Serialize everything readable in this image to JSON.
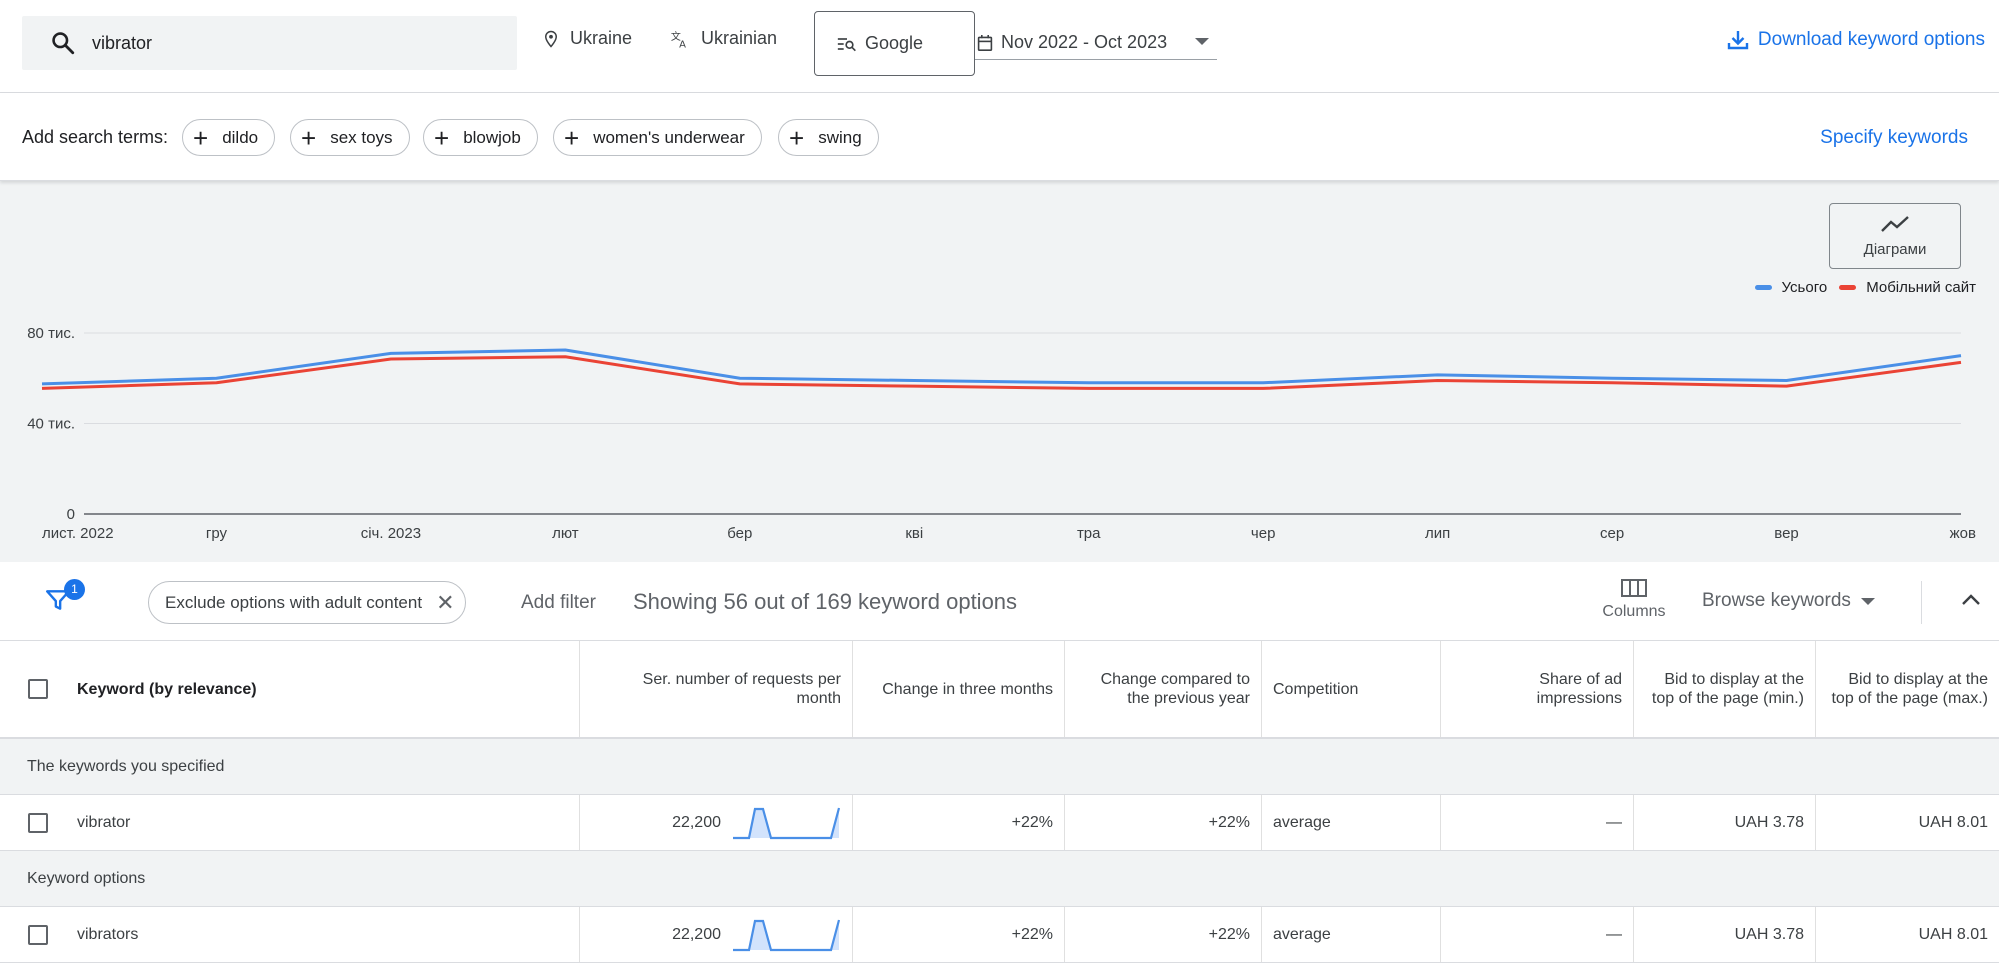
{
  "topbar": {
    "search_value": "vibrator",
    "location": "Ukraine",
    "language": "Ukrainian",
    "network": "Google",
    "date_range": "Nov 2022 - Oct 2023",
    "download_label": "Download keyword options"
  },
  "terms": {
    "label": "Add search terms:",
    "chips": [
      "dildo",
      "sex toys",
      "blowjob",
      "women's underwear",
      "swing"
    ],
    "specify_label": "Specify keywords"
  },
  "chart_button_label": "Діаграми",
  "legend": {
    "total": "Усього",
    "mobile": "Мобільний сайт"
  },
  "colors": {
    "total": "#4a8fe7",
    "mobile": "#ea4335",
    "accent": "#1a73e8"
  },
  "chart_data": {
    "type": "line",
    "x": [
      "лист. 2022",
      "гру",
      "січ. 2023",
      "лют",
      "бер",
      "кві",
      "тра",
      "чер",
      "лип",
      "сер",
      "вер",
      "жов"
    ],
    "y_ticks": [
      {
        "value": 0,
        "label": "0"
      },
      {
        "value": 40000,
        "label": "40 тис."
      },
      {
        "value": 80000,
        "label": "80 тис."
      }
    ],
    "ylim": [
      0,
      80000
    ],
    "series": [
      {
        "name": "Усього",
        "values": [
          57500,
          60000,
          71000,
          72500,
          60000,
          59000,
          58000,
          58000,
          61500,
          60000,
          59000,
          70000
        ]
      },
      {
        "name": "Мобільний сайт",
        "values": [
          55500,
          58000,
          68500,
          69500,
          57500,
          56500,
          55500,
          55500,
          59000,
          58000,
          56500,
          67000
        ]
      }
    ]
  },
  "filterbar": {
    "badge_count": "1",
    "exclude_chip": "Exclude options with adult content",
    "add_filter": "Add filter",
    "showing": "Showing 56 out of 169 keyword options",
    "columns_label": "Columns",
    "browse_label": "Browse keywords"
  },
  "table": {
    "headers": {
      "keyword": "Keyword (by relevance)",
      "avg_requests": "Ser. number of requests per month",
      "change_3m": "Change in three months",
      "change_yoy": "Change compared to the previous year",
      "competition": "Competition",
      "impr_share": "Share of ad impressions",
      "bid_min": "Bid to display at the top of the page (min.)",
      "bid_max": "Bid to display at the top of the page (max.)"
    },
    "groups": [
      {
        "title": "The keywords you specified",
        "rows": [
          {
            "keyword": "vibrator",
            "avg_requests": "22,200",
            "change_3m": "+22%",
            "change_yoy": "+22%",
            "competition": "average",
            "impr_share": "—",
            "bid_min": "UAH 3.78",
            "bid_max": "UAH 8.01"
          }
        ]
      },
      {
        "title": "Keyword options",
        "rows": [
          {
            "keyword": "vibrators",
            "avg_requests": "22,200",
            "change_3m": "+22%",
            "change_yoy": "+22%",
            "competition": "average",
            "impr_share": "—",
            "bid_min": "UAH 3.78",
            "bid_max": "UAH 8.01"
          }
        ]
      }
    ]
  }
}
